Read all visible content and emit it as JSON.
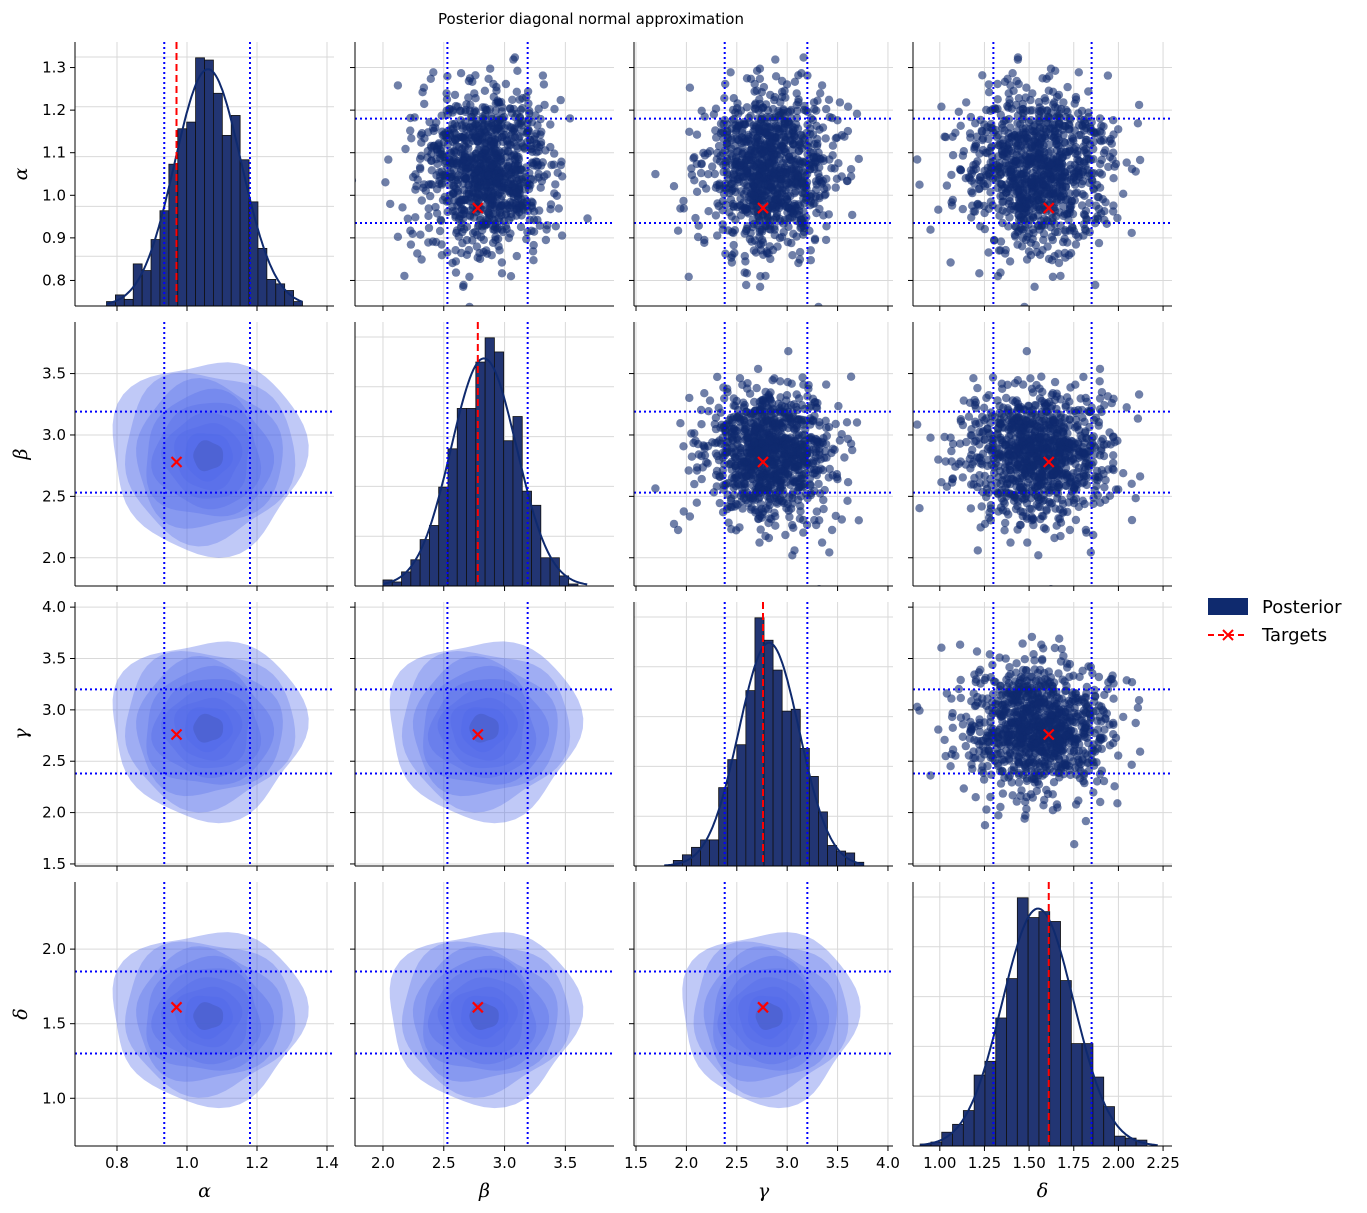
{
  "figure_title": "Posterior diagonal normal approximation",
  "legend": {
    "posterior_label": "Posterior",
    "targets_label": "Targets"
  },
  "colors": {
    "posterior": "#0f2a6e",
    "posterior_hist": "#223573",
    "kde_fill": "#4a64e8",
    "target": "#ff0000",
    "interval": "#0000ff",
    "grid": "#d9d9d9"
  },
  "chart_data": {
    "type": "scatter",
    "title": "Posterior diagonal normal approximation",
    "layout": "pair-grid 4x4: histograms with KDE on diagonal, scatter in upper triangle, filled KDE contours in lower triangle",
    "grid": true,
    "legend_position": "right",
    "num_samples": 1000,
    "parameters": [
      {
        "name": "alpha",
        "symbol": "α",
        "target": 0.97,
        "interval": [
          0.935,
          1.18
        ],
        "posterior_mean": 1.06,
        "posterior_std": 0.095,
        "axis_range": [
          0.68,
          1.42
        ],
        "row_range": [
          0.74,
          1.36
        ],
        "ticks": [
          0.8,
          1.0,
          1.2,
          1.4
        ],
        "tick_labels": [
          "0.8",
          "1.0",
          "1.2",
          "1.4"
        ],
        "y_ticks": [
          0.8,
          0.9,
          1.0,
          1.1,
          1.2,
          1.3
        ],
        "y_tick_labels": [
          "0.8",
          "0.9",
          "1.0",
          "1.1",
          "1.2",
          "1.3"
        ],
        "hist_range": [
          0.77,
          1.33
        ]
      },
      {
        "name": "beta",
        "symbol": "β",
        "target": 2.78,
        "interval": [
          2.53,
          3.19
        ],
        "posterior_mean": 2.83,
        "posterior_std": 0.27,
        "axis_range": [
          1.77,
          3.9
        ],
        "row_range": [
          1.77,
          3.92
        ],
        "ticks": [
          2.0,
          2.5,
          3.0,
          3.5
        ],
        "tick_labels": [
          "2.0",
          "2.5",
          "3.0",
          "3.5"
        ],
        "y_ticks": [
          2.0,
          2.5,
          3.0,
          3.5
        ],
        "y_tick_labels": [
          "2.0",
          "2.5",
          "3.0",
          "3.5"
        ],
        "hist_range": [
          2.0,
          3.68
        ]
      },
      {
        "name": "gamma",
        "symbol": "γ",
        "target": 2.76,
        "interval": [
          2.38,
          3.2
        ],
        "posterior_mean": 2.82,
        "posterior_std": 0.3,
        "axis_range": [
          1.48,
          4.05
        ],
        "row_range": [
          1.48,
          4.05
        ],
        "ticks": [
          1.5,
          2.0,
          2.5,
          3.0,
          3.5,
          4.0
        ],
        "tick_labels": [
          "1.5",
          "2.0",
          "2.5",
          "3.0",
          "3.5",
          "4.0"
        ],
        "y_ticks": [
          1.5,
          2.0,
          2.5,
          3.0,
          3.5,
          4.0
        ],
        "y_tick_labels": [
          "1.5",
          "2.0",
          "2.5",
          "3.0",
          "3.5",
          "4.0"
        ],
        "hist_range": [
          1.78,
          3.76
        ]
      },
      {
        "name": "delta",
        "symbol": "δ",
        "target": 1.61,
        "interval": [
          1.3,
          1.85
        ],
        "posterior_mean": 1.55,
        "posterior_std": 0.2,
        "axis_range": [
          0.85,
          2.3
        ],
        "row_range": [
          0.68,
          2.45
        ],
        "ticks": [
          1.0,
          1.25,
          1.5,
          1.75,
          2.0,
          2.25
        ],
        "tick_labels": [
          "1.00",
          "1.25",
          "1.50",
          "1.75",
          "2.00",
          "2.25"
        ],
        "y_ticks": [
          1.0,
          1.5,
          2.0
        ],
        "y_tick_labels": [
          "1.0",
          "1.5",
          "2.0"
        ],
        "hist_range": [
          0.89,
          2.22
        ]
      }
    ]
  }
}
